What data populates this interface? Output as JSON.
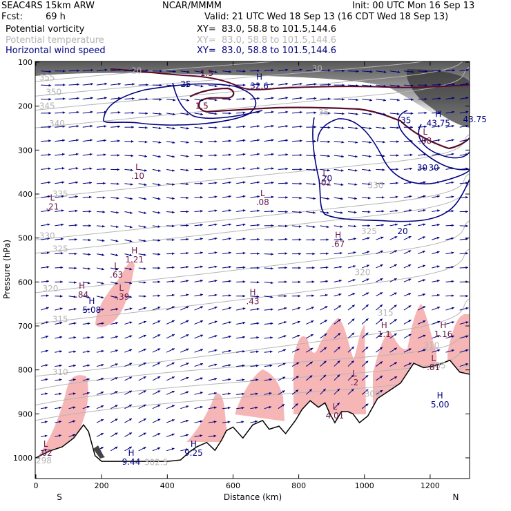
{
  "header": {
    "model": "SEAC4RS 15km ARW",
    "org": "NCAR/MMMM",
    "init": "Init: 00 UTC Mon 16 Sep 13",
    "fcst_label": "Fcst:",
    "fcst_value": "69 h",
    "valid": "Valid: 21 UTC Wed 18 Sep 13 (16 CDT Wed 18 Sep 13)",
    "fields": [
      {
        "name": "Potential vorticity",
        "xy": "XY=  83.0, 58.8 to 101.5,144.6",
        "color": "#000000"
      },
      {
        "name": "Potential temperature",
        "xy": "XY=  83.0, 58.8 to 101.5,144.6",
        "color": "#b4b4b4"
      },
      {
        "name": "Horizontal wind speed",
        "xy": "XY=  83.0, 58.8 to 101.5,144.6",
        "color": "#000080"
      }
    ]
  },
  "chart_data": {
    "type": "cross-section",
    "xlabel": "Distance (km)",
    "ylabel": "Pressure (hPa)",
    "xlim": [
      0,
      1320
    ],
    "ylim": [
      1050,
      100
    ],
    "x_ticks": [
      0,
      200,
      400,
      600,
      800,
      1000,
      1200
    ],
    "y_ticks": [
      100,
      200,
      300,
      400,
      500,
      600,
      700,
      800,
      900,
      1000
    ],
    "endpoints": {
      "left": "S",
      "right": "N"
    },
    "colors": {
      "pv_fill": "#f7b6b6",
      "pv_contour": "#5a0a2a",
      "theta": "#b4b4b4",
      "wind": "#000080",
      "terrain": "#000000"
    },
    "terrain": [
      {
        "x": 0,
        "p": 1000
      },
      {
        "x": 40,
        "p": 985
      },
      {
        "x": 80,
        "p": 975
      },
      {
        "x": 115,
        "p": 955
      },
      {
        "x": 145,
        "p": 925
      },
      {
        "x": 160,
        "p": 940
      },
      {
        "x": 180,
        "p": 995
      },
      {
        "x": 200,
        "p": 1008
      },
      {
        "x": 250,
        "p": 1008
      },
      {
        "x": 300,
        "p": 1008
      },
      {
        "x": 350,
        "p": 1008
      },
      {
        "x": 400,
        "p": 1008
      },
      {
        "x": 440,
        "p": 1005
      },
      {
        "x": 470,
        "p": 985
      },
      {
        "x": 490,
        "p": 975
      },
      {
        "x": 520,
        "p": 965
      },
      {
        "x": 545,
        "p": 983
      },
      {
        "x": 565,
        "p": 960
      },
      {
        "x": 580,
        "p": 938
      },
      {
        "x": 600,
        "p": 930
      },
      {
        "x": 630,
        "p": 955
      },
      {
        "x": 660,
        "p": 925
      },
      {
        "x": 690,
        "p": 915
      },
      {
        "x": 710,
        "p": 935
      },
      {
        "x": 740,
        "p": 928
      },
      {
        "x": 760,
        "p": 945
      },
      {
        "x": 790,
        "p": 915
      },
      {
        "x": 810,
        "p": 890
      },
      {
        "x": 835,
        "p": 870
      },
      {
        "x": 860,
        "p": 885
      },
      {
        "x": 880,
        "p": 875
      },
      {
        "x": 895,
        "p": 900
      },
      {
        "x": 910,
        "p": 920
      },
      {
        "x": 930,
        "p": 895
      },
      {
        "x": 950,
        "p": 895
      },
      {
        "x": 965,
        "p": 900
      },
      {
        "x": 985,
        "p": 920
      },
      {
        "x": 1010,
        "p": 905
      },
      {
        "x": 1040,
        "p": 865
      },
      {
        "x": 1080,
        "p": 845
      },
      {
        "x": 1110,
        "p": 830
      },
      {
        "x": 1150,
        "p": 785
      },
      {
        "x": 1180,
        "p": 795
      },
      {
        "x": 1220,
        "p": 790
      },
      {
        "x": 1260,
        "p": 778
      },
      {
        "x": 1290,
        "p": 805
      },
      {
        "x": 1320,
        "p": 810
      }
    ],
    "theta_contours": [
      {
        "value": "355",
        "label_x": 10,
        "label_p": 135
      },
      {
        "value": "350",
        "label_x": 30,
        "label_p": 168
      },
      {
        "value": "345",
        "label_x": 10,
        "label_p": 200
      },
      {
        "value": "340",
        "label_x": 40,
        "label_p": 240
      },
      {
        "value": "335",
        "label_x": 50,
        "label_p": 400
      },
      {
        "value": "330",
        "label_x": 10,
        "label_p": 495
      },
      {
        "value": "325",
        "label_x": 50,
        "label_p": 525
      },
      {
        "value": "320",
        "label_x": 20,
        "label_p": 615
      },
      {
        "value": "315",
        "label_x": 50,
        "label_p": 685
      },
      {
        "value": "310",
        "label_x": 50,
        "label_p": 805
      }
    ],
    "theta_inner_labels": [
      {
        "text": "330",
        "x": 1010,
        "p": 380
      },
      {
        "text": "325",
        "x": 990,
        "p": 485
      },
      {
        "text": "320",
        "x": 970,
        "p": 578
      },
      {
        "text": "315",
        "x": 1040,
        "p": 670
      },
      {
        "text": "310",
        "x": 1180,
        "p": 745
      },
      {
        "text": "305",
        "x": 1200,
        "p": 790
      },
      {
        "text": "300",
        "x": 1000,
        "p": 855
      },
      {
        "text": "302.5",
        "x": 330,
        "p": 1010
      },
      {
        "text": "298",
        "x": 0,
        "p": 1006
      },
      {
        "text": "20",
        "x": 290,
        "p": 120
      },
      {
        "text": "30",
        "x": 840,
        "p": 115
      },
      {
        "text": "35",
        "x": 860,
        "p": 215
      }
    ],
    "wind_labels": [
      {
        "text": "25",
        "x": 440,
        "p": 150
      },
      {
        "text": "20",
        "x": 870,
        "p": 365
      },
      {
        "text": "30",
        "x": 1160,
        "p": 340
      },
      {
        "text": "20",
        "x": 1100,
        "p": 485
      },
      {
        "text": "35",
        "x": 1110,
        "p": 233
      },
      {
        "text": "43.75",
        "x": 1300,
        "p": 230
      },
      {
        "text": "30",
        "x": 1195,
        "p": 340
      }
    ],
    "pv_labels": [
      {
        "text": "1.5",
        "x": 500,
        "p": 125
      },
      {
        "text": "1.5",
        "x": 485,
        "p": 200
      }
    ],
    "extrema": [
      {
        "type": "H",
        "value": "32.6",
        "x": 680,
        "p": 140
      },
      {
        "type": "H",
        "value": "43.75",
        "x": 1225,
        "p": 225
      },
      {
        "type": "L",
        "value": ".08",
        "x": 1185,
        "p": 265
      },
      {
        "type": "L",
        "value": ".10",
        "x": 310,
        "p": 345
      },
      {
        "type": "L",
        "value": ".08",
        "x": 690,
        "p": 405
      },
      {
        "type": "L",
        "value": ".21",
        "x": 50,
        "p": 415
      },
      {
        "type": "L",
        "value": ".01",
        "x": 880,
        "p": 360
      },
      {
        "type": "H",
        "value": ".67",
        "x": 920,
        "p": 500
      },
      {
        "type": "H",
        "value": "1.21",
        "x": 300,
        "p": 535
      },
      {
        "type": "L",
        "value": ".63",
        "x": 245,
        "p": 570
      },
      {
        "type": "H",
        "value": ".84",
        "x": 140,
        "p": 615
      },
      {
        "type": "L",
        "value": "-.39",
        "x": 260,
        "p": 620
      },
      {
        "type": "H",
        "value": "5.08",
        "x": 170,
        "p": 650
      },
      {
        "type": "H",
        "value": ".43",
        "x": 660,
        "p": 630
      },
      {
        "type": "H",
        "value": "1.1",
        "x": 1060,
        "p": 705
      },
      {
        "type": "H",
        "value": "1.16",
        "x": 1240,
        "p": 705
      },
      {
        "type": "L",
        "value": ".81",
        "x": 1210,
        "p": 780
      },
      {
        "type": "L",
        "value": ".2",
        "x": 970,
        "p": 815
      },
      {
        "type": "L",
        "value": "4.01",
        "x": 910,
        "p": 890
      },
      {
        "type": "H",
        "value": "5.00",
        "x": 1230,
        "p": 865
      },
      {
        "type": "L",
        "value": ".02",
        "x": 30,
        "p": 975
      },
      {
        "type": "H",
        "value": "9.44",
        "x": 290,
        "p": 995
      },
      {
        "type": "H",
        "value": "9.25",
        "x": 480,
        "p": 975
      }
    ]
  }
}
